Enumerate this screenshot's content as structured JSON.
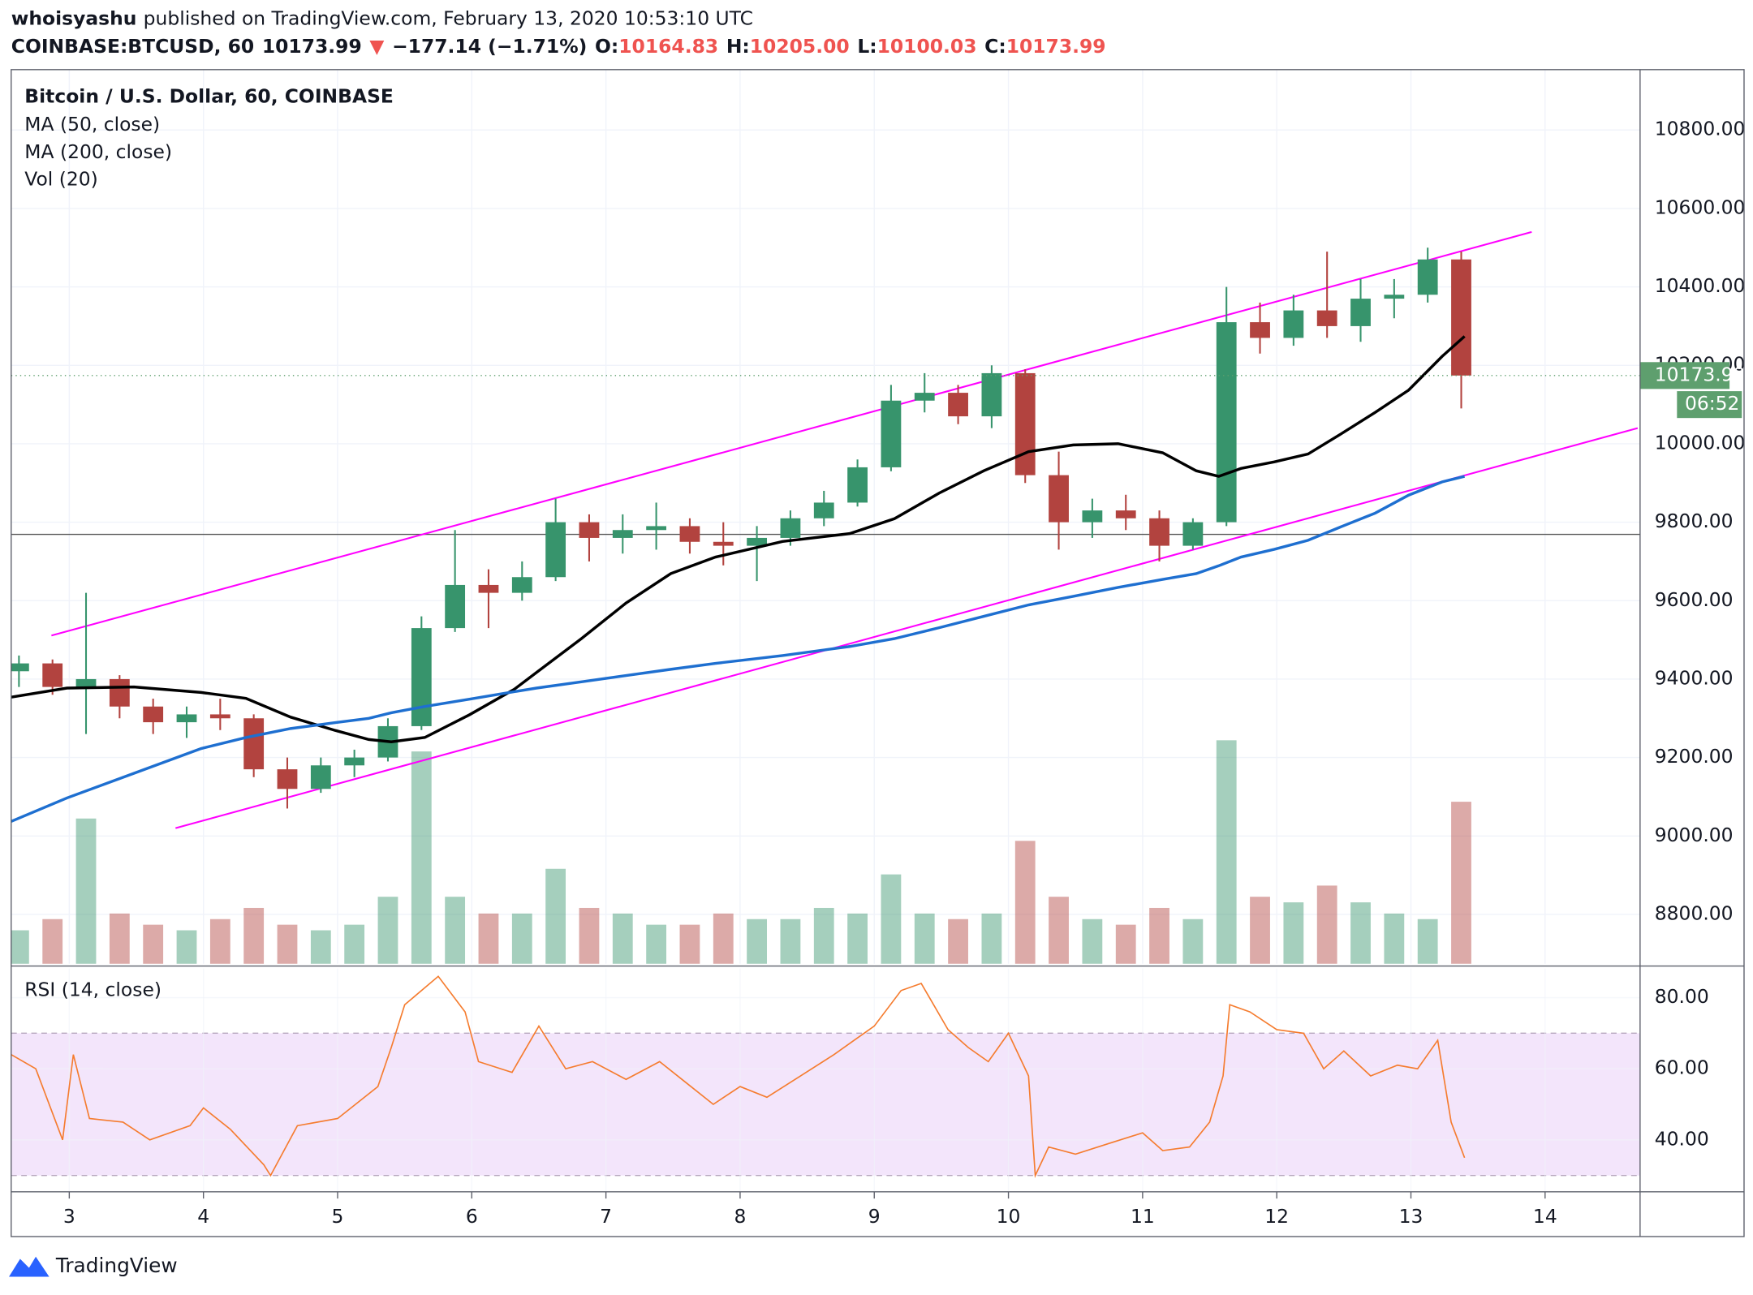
{
  "header": {
    "author": "whoisyashu",
    "published": "published on TradingView.com, February 13, 2020 10:53:10 UTC",
    "quote": [
      {
        "text": "COINBASE:BTCUSD, 60",
        "color": "#131722"
      },
      {
        "text": "10173.99",
        "color": "#131722"
      },
      {
        "text": "▼",
        "color": "#ef5350"
      },
      {
        "text": "−177.14 (−1.71%)",
        "color": "#131722"
      },
      {
        "text": "O:",
        "color": "#131722"
      },
      {
        "text": "10164.83",
        "color": "#ef5350"
      },
      {
        "text": "H:",
        "color": "#131722"
      },
      {
        "text": "10205.00",
        "color": "#ef5350"
      },
      {
        "text": "L:",
        "color": "#131722"
      },
      {
        "text": "10100.03",
        "color": "#ef5350"
      },
      {
        "text": "C:",
        "color": "#131722"
      },
      {
        "text": "10173.99",
        "color": "#ef5350"
      }
    ]
  },
  "footer": {
    "logo": "TradingView"
  },
  "chart_data": [
    {
      "type": "candlestick",
      "title": "Bitcoin / U.S. Dollar, 60, COINBASE",
      "up_color": "#37946c",
      "down_color": "#b2433f",
      "x": [
        2.625,
        2.875,
        3.125,
        3.375,
        3.625,
        3.875,
        4.125,
        4.375,
        4.625,
        4.875,
        5.125,
        5.375,
        5.625,
        5.875,
        6.125,
        6.375,
        6.625,
        6.875,
        7.125,
        7.375,
        7.625,
        7.875,
        8.125,
        8.375,
        8.625,
        8.875,
        9.125,
        9.375,
        9.625,
        9.875,
        10.125,
        10.375,
        10.625,
        10.875,
        11.125,
        11.375,
        11.625,
        11.875,
        12.125,
        12.375,
        12.625,
        12.875,
        13.125,
        13.375
      ],
      "open": [
        9420,
        9440,
        9380,
        9400,
        9330,
        9290,
        9310,
        9300,
        9170,
        9120,
        9180,
        9200,
        9280,
        9530,
        9640,
        9620,
        9660,
        9800,
        9760,
        9780,
        9790,
        9750,
        9740,
        9760,
        9810,
        9850,
        9940,
        10110,
        10130,
        10070,
        10180,
        9920,
        9800,
        9830,
        9810,
        9740,
        9800,
        10310,
        10270,
        10340,
        10300,
        10370,
        10380,
        10470
      ],
      "high": [
        9460,
        9450,
        9620,
        9410,
        9350,
        9330,
        9350,
        9310,
        9200,
        9200,
        9220,
        9300,
        9560,
        9780,
        9680,
        9700,
        9860,
        9820,
        9820,
        9850,
        9810,
        9800,
        9790,
        9830,
        9880,
        9960,
        10150,
        10180,
        10150,
        10200,
        10190,
        9980,
        9860,
        9870,
        9830,
        9810,
        10400,
        10360,
        10380,
        10490,
        10420,
        10420,
        10500,
        10490
      ],
      "low": [
        9380,
        9360,
        9260,
        9300,
        9260,
        9250,
        9270,
        9150,
        9070,
        9110,
        9150,
        9190,
        9270,
        9520,
        9530,
        9600,
        9650,
        9700,
        9720,
        9730,
        9720,
        9690,
        9650,
        9740,
        9790,
        9840,
        9930,
        10080,
        10050,
        10040,
        9900,
        9730,
        9760,
        9780,
        9700,
        9730,
        9790,
        10230,
        10250,
        10270,
        10260,
        10320,
        10360,
        10090
      ],
      "close": [
        9440,
        9380,
        9400,
        9330,
        9290,
        9310,
        9300,
        9170,
        9120,
        9180,
        9200,
        9280,
        9530,
        9640,
        9620,
        9660,
        9800,
        9760,
        9780,
        9790,
        9750,
        9740,
        9760,
        9810,
        9850,
        9940,
        10110,
        10130,
        10070,
        10180,
        9920,
        9800,
        9830,
        9810,
        9740,
        9800,
        10310,
        10270,
        10340,
        10300,
        10370,
        10380,
        10470,
        10173.99
      ],
      "volume_name": "Vol (20)",
      "vlim": [
        0,
        800
      ],
      "volume": [
        30,
        40,
        130,
        45,
        35,
        30,
        40,
        50,
        35,
        30,
        35,
        60,
        190,
        60,
        45,
        45,
        85,
        50,
        45,
        35,
        35,
        45,
        40,
        40,
        50,
        45,
        80,
        45,
        40,
        45,
        110,
        60,
        40,
        35,
        50,
        40,
        200,
        60,
        55,
        70,
        55,
        45,
        40,
        145
      ],
      "series": [
        {
          "name": "MA (50, close)",
          "color": "#000000",
          "x": [
            2.567,
            2.983,
            3.483,
            3.983,
            4.317,
            4.65,
            4.983,
            5.233,
            5.4,
            5.65,
            5.983,
            6.317,
            6.483,
            6.817,
            7.15,
            7.483,
            7.817,
            8.317,
            8.817,
            9.15,
            9.483,
            9.817,
            10.15,
            10.483,
            10.817,
            11.15,
            11.4,
            11.567,
            11.733,
            11.983,
            12.233,
            12.483,
            12.733,
            12.983,
            13.233,
            13.4
          ],
          "values": [
            9354,
            9377,
            9380,
            9366,
            9351,
            9303,
            9269,
            9246,
            9240,
            9251,
            9309,
            9374,
            9417,
            9503,
            9594,
            9669,
            9711,
            9751,
            9771,
            9809,
            9874,
            9931,
            9980,
            9997,
            10000,
            9977,
            9931,
            9917,
            9937,
            9954,
            9974,
            10026,
            10080,
            10137,
            10223,
            10274
          ]
        },
        {
          "name": "MA (200, close)",
          "color": "#1e6fd0",
          "x": [
            2.567,
            2.983,
            3.483,
            3.983,
            4.317,
            4.65,
            4.983,
            5.233,
            5.4,
            5.65,
            5.983,
            6.317,
            6.483,
            6.817,
            7.15,
            7.483,
            7.817,
            8.317,
            8.817,
            9.15,
            9.483,
            9.817,
            10.15,
            10.483,
            10.817,
            11.15,
            11.4,
            11.567,
            11.733,
            11.983,
            12.233,
            12.483,
            12.733,
            12.983,
            13.233,
            13.4
          ],
          "values": [
            9037,
            9097,
            9160,
            9223,
            9251,
            9274,
            9289,
            9300,
            9314,
            9330,
            9349,
            9368,
            9377,
            9393,
            9409,
            9425,
            9440,
            9460,
            9483,
            9503,
            9531,
            9560,
            9589,
            9611,
            9634,
            9654,
            9669,
            9689,
            9711,
            9731,
            9754,
            9789,
            9823,
            9869,
            9903,
            9917
          ]
        }
      ],
      "trendlines": [
        {
          "color": "#ff00ff",
          "x": [
            2.867,
            13.9
          ],
          "values": [
            9511,
            10540
          ]
        },
        {
          "color": "#ff00ff",
          "x": [
            3.792,
            14.69
          ],
          "values": [
            9020,
            10040
          ]
        }
      ],
      "hline": 9769,
      "countdown": "06:52",
      "tag_color": "#5e9f6e",
      "xlim": [
        2.567,
        14.708
      ],
      "ylim": [
        8674,
        10954
      ],
      "yticks": [
        {
          "value": 8800,
          "label": "8800.00"
        },
        {
          "value": 9000,
          "label": "9000.00"
        },
        {
          "value": 9200,
          "label": "9200.00"
        },
        {
          "value": 9400,
          "label": "9400.00"
        },
        {
          "value": 9600,
          "label": "9600.00"
        },
        {
          "value": 9800,
          "label": "9800.00"
        },
        {
          "value": 10000,
          "label": "10000.00"
        },
        {
          "value": 10200,
          "label": "10200.00"
        },
        {
          "value": 10400,
          "label": "10400.00"
        },
        {
          "value": 10600,
          "label": "10600.00"
        },
        {
          "value": 10800,
          "label": "10800.00"
        }
      ],
      "grid": true
    },
    {
      "type": "line",
      "title": "RSI (14, close)",
      "color": "#f57c2f",
      "band": [
        30,
        70
      ],
      "band_color": "#f3e5fb",
      "x": [
        2.567,
        2.75,
        2.95,
        3.03,
        3.15,
        3.4,
        3.6,
        3.9,
        4.0,
        4.2,
        4.45,
        4.5,
        4.7,
        5.0,
        5.3,
        5.4,
        5.5,
        5.75,
        5.95,
        6.05,
        6.3,
        6.5,
        6.7,
        6.9,
        7.15,
        7.4,
        7.6,
        7.8,
        8.0,
        8.2,
        8.45,
        8.7,
        8.85,
        9.0,
        9.2,
        9.35,
        9.55,
        9.7,
        9.85,
        10.0,
        10.15,
        10.2,
        10.3,
        10.5,
        10.75,
        11.0,
        11.15,
        11.35,
        11.5,
        11.6,
        11.65,
        11.8,
        12.0,
        12.2,
        12.35,
        12.5,
        12.7,
        12.9,
        13.05,
        13.2,
        13.3,
        13.4
      ],
      "values": [
        64,
        60,
        40,
        64,
        46,
        45,
        40,
        44,
        49,
        43,
        33,
        30,
        44,
        46,
        55,
        66,
        78,
        86,
        76,
        62,
        59,
        72,
        60,
        62,
        57,
        62,
        56,
        50,
        55,
        52,
        58,
        64,
        68,
        72,
        82,
        84,
        71,
        66,
        62,
        70,
        58,
        30,
        38,
        36,
        39,
        42,
        37,
        38,
        45,
        58,
        78,
        76,
        71,
        70,
        60,
        65,
        58,
        61,
        60,
        68,
        45,
        35
      ],
      "xlim": [
        2.567,
        14.708
      ],
      "ylim": [
        25.4,
        88.25
      ],
      "xticks": [
        3,
        4,
        5,
        6,
        7,
        8,
        9,
        10,
        11,
        12,
        13,
        14
      ],
      "yticks": [
        {
          "value": 40,
          "label": "40.00"
        },
        {
          "value": 60,
          "label": "60.00"
        },
        {
          "value": 80,
          "label": "80.00"
        }
      ],
      "grid": true
    }
  ]
}
